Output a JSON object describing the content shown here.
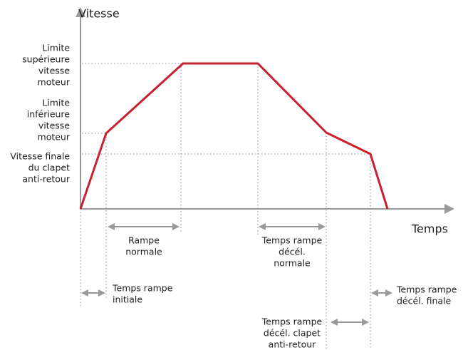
{
  "y_axis_label": "Vitesse",
  "x_axis_label": "Temps",
  "levels": [
    {
      "lines": [
        "Limite",
        "supérieure",
        "vitesse",
        "moteur"
      ]
    },
    {
      "lines": [
        "Limite",
        "inférieure",
        "vitesse",
        "moteur"
      ]
    },
    {
      "lines": [
        "Vitesse finale",
        "du clapet",
        "anti-retour"
      ]
    }
  ],
  "phases": [
    {
      "lines": [
        "Rampe",
        "normale"
      ]
    },
    {
      "lines": [
        "Temps rampe",
        "décél.",
        "normale"
      ]
    },
    {
      "lines": [
        "Temps rampe",
        "initiale"
      ]
    },
    {
      "lines": [
        "Temps rampe",
        "décél. finale"
      ]
    },
    {
      "lines": [
        "Temps rampe",
        "décél. clapet",
        "anti-retour"
      ]
    }
  ]
}
